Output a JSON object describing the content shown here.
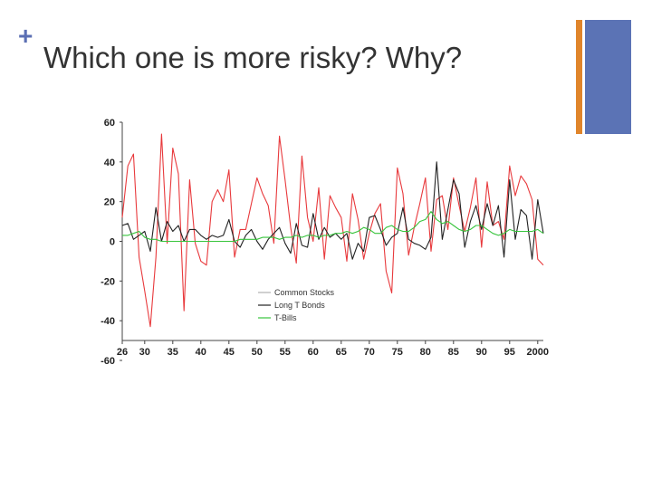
{
  "slide": {
    "bullet": "+",
    "title": "Which one is more risky? Why?",
    "accent_orange": "#e0852b",
    "accent_blue": "#5b73b5"
  },
  "chart_data": {
    "type": "line",
    "title": "",
    "xlabel": "",
    "ylabel": "",
    "ylim": [
      -60,
      60
    ],
    "xlim": [
      1926,
      2001
    ],
    "y_ticks": [
      60,
      40,
      20,
      0,
      -20,
      -40,
      -60
    ],
    "y_tick_labels": [
      "60",
      "40",
      "20",
      "0",
      "-20",
      "-40",
      "-60"
    ],
    "x_ticks": [
      1926,
      1930,
      1935,
      1940,
      1945,
      1950,
      1955,
      1960,
      1965,
      1970,
      1975,
      1980,
      1985,
      1990,
      1995,
      2000
    ],
    "x_tick_labels": [
      "26",
      "30",
      "35",
      "40",
      "45",
      "50",
      "55",
      "60",
      "65",
      "70",
      "75",
      "80",
      "85",
      "90",
      "95",
      "2000"
    ],
    "legend_position": "center",
    "x": [
      1926,
      1927,
      1928,
      1929,
      1930,
      1931,
      1932,
      1933,
      1934,
      1935,
      1936,
      1937,
      1938,
      1939,
      1940,
      1941,
      1942,
      1943,
      1944,
      1945,
      1946,
      1947,
      1948,
      1949,
      1950,
      1951,
      1952,
      1953,
      1954,
      1955,
      1956,
      1957,
      1958,
      1959,
      1960,
      1961,
      1962,
      1963,
      1964,
      1965,
      1966,
      1967,
      1968,
      1969,
      1970,
      1971,
      1972,
      1973,
      1974,
      1975,
      1976,
      1977,
      1978,
      1979,
      1980,
      1981,
      1982,
      1983,
      1984,
      1985,
      1986,
      1987,
      1988,
      1989,
      1990,
      1991,
      1992,
      1993,
      1994,
      1995,
      1996,
      1997,
      1998,
      1999,
      2000,
      2001
    ],
    "series": [
      {
        "name": "Common Stocks",
        "color": "#e8393c",
        "values": [
          12,
          38,
          44,
          -8,
          -25,
          -43,
          -8,
          54,
          -1,
          47,
          34,
          -35,
          31,
          -1,
          -10,
          -12,
          20,
          26,
          20,
          36,
          -8,
          6,
          6,
          19,
          32,
          24,
          18,
          -1,
          53,
          31,
          7,
          -11,
          43,
          12,
          0,
          27,
          -9,
          23,
          17,
          12,
          -10,
          24,
          11,
          -9,
          4,
          14,
          19,
          -15,
          -26,
          37,
          24,
          -7,
          7,
          19,
          32,
          -5,
          21,
          23,
          6,
          32,
          18,
          5,
          17,
          32,
          -3,
          30,
          8,
          10,
          1,
          38,
          23,
          33,
          29,
          21,
          -9,
          -12
        ]
      },
      {
        "name": "Long T Bonds",
        "color": "#222222",
        "values": [
          8,
          9,
          1,
          3,
          5,
          -5,
          17,
          0,
          10,
          5,
          8,
          0,
          6,
          6,
          3,
          1,
          3,
          2,
          3,
          11,
          0,
          -3,
          3,
          6,
          0,
          -4,
          1,
          4,
          7,
          -1,
          -6,
          9,
          -2,
          -3,
          14,
          1,
          7,
          2,
          4,
          1,
          4,
          -9,
          -1,
          -5,
          12,
          13,
          6,
          -2,
          2,
          4,
          17,
          1,
          -1,
          -2,
          -4,
          2,
          40,
          1,
          16,
          31,
          24,
          -3,
          10,
          18,
          6,
          19,
          8,
          18,
          -8,
          31,
          1,
          16,
          13,
          -9,
          21,
          4
        ]
      },
      {
        "name": "T-Bills",
        "color": "#37c43c",
        "values": [
          3,
          3,
          4,
          5,
          2,
          1,
          1,
          0,
          0,
          0,
          0,
          0,
          0,
          0,
          0,
          0,
          0,
          0,
          0,
          0,
          0,
          1,
          1,
          1,
          1,
          2,
          2,
          2,
          1,
          2,
          2,
          3,
          2,
          3,
          3,
          2,
          3,
          3,
          4,
          4,
          5,
          4,
          5,
          7,
          6,
          4,
          4,
          7,
          8,
          6,
          5,
          5,
          7,
          10,
          11,
          15,
          11,
          9,
          10,
          8,
          6,
          5,
          6,
          8,
          8,
          6,
          4,
          3,
          4,
          6,
          5,
          5,
          5,
          5,
          6,
          4
        ]
      }
    ]
  }
}
